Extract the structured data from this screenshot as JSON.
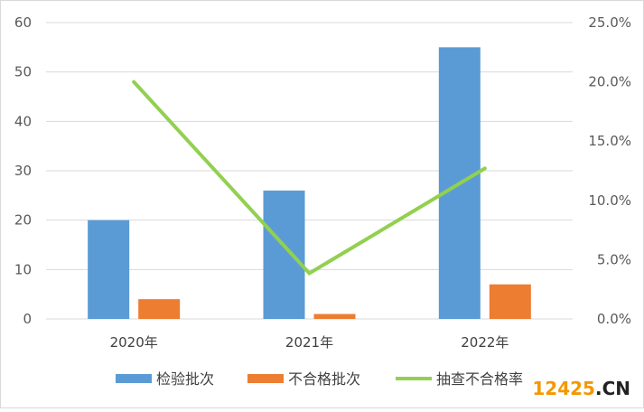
{
  "chart_data": {
    "type": "bar+line",
    "categories": [
      "2020年",
      "2021年",
      "2022年"
    ],
    "series": [
      {
        "name": "检验批次",
        "type": "bar",
        "axis": "left",
        "color": "#5B9BD5",
        "values": [
          20,
          26,
          55
        ]
      },
      {
        "name": "不合格批次",
        "type": "bar",
        "axis": "left",
        "color": "#ED7D31",
        "values": [
          4,
          1,
          7
        ]
      },
      {
        "name": "抽查不合格率",
        "type": "line",
        "axis": "right",
        "color": "#92D050",
        "values": [
          0.2,
          0.0385,
          0.127
        ]
      }
    ],
    "y_left": {
      "min": 0,
      "max": 60,
      "step": 10,
      "ticks": [
        "0",
        "10",
        "20",
        "30",
        "40",
        "50",
        "60"
      ]
    },
    "y_right": {
      "min": 0,
      "max": 0.25,
      "step": 0.05,
      "ticks": [
        "0.0%",
        "5.0%",
        "10.0%",
        "15.0%",
        "20.0%",
        "25.0%"
      ]
    },
    "grid": true,
    "legend_position": "bottom"
  },
  "watermark": {
    "digits": "12425",
    "suffix": ".CN",
    "digits_color": "#F39800",
    "suffix_color": "#222222"
  }
}
